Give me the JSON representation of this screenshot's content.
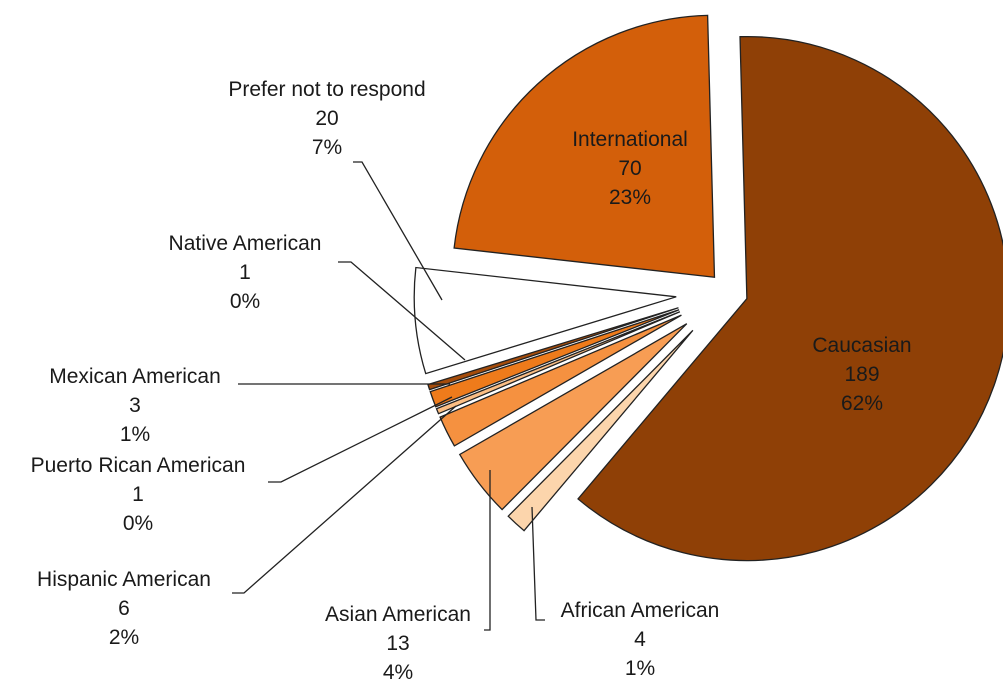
{
  "chart_data": {
    "type": "pie",
    "slices": [
      {
        "label": "Caucasian",
        "value": 189,
        "percent": "62%",
        "color": "#8f4006"
      },
      {
        "label": "African American",
        "value": 4,
        "percent": "1%",
        "color": "#fcd5ac"
      },
      {
        "label": "Asian American",
        "value": 13,
        "percent": "4%",
        "color": "#f79d54"
      },
      {
        "label": "Hispanic American",
        "value": 6,
        "percent": "2%",
        "color": "#f59140"
      },
      {
        "label": "Puerto Rican American",
        "value": 1,
        "percent": "0%",
        "color": "#fbbe84"
      },
      {
        "label": "Mexican American",
        "value": 3,
        "percent": "1%",
        "color": "#ee7b1b"
      },
      {
        "label": "Native American",
        "value": 1,
        "percent": "0%",
        "color": "#a54c0b"
      },
      {
        "label": "Prefer not to respond",
        "value": 20,
        "percent": "7%",
        "color": "#ffffff"
      },
      {
        "label": "International",
        "value": 70,
        "percent": "23%",
        "color": "#d35f0a"
      }
    ]
  }
}
